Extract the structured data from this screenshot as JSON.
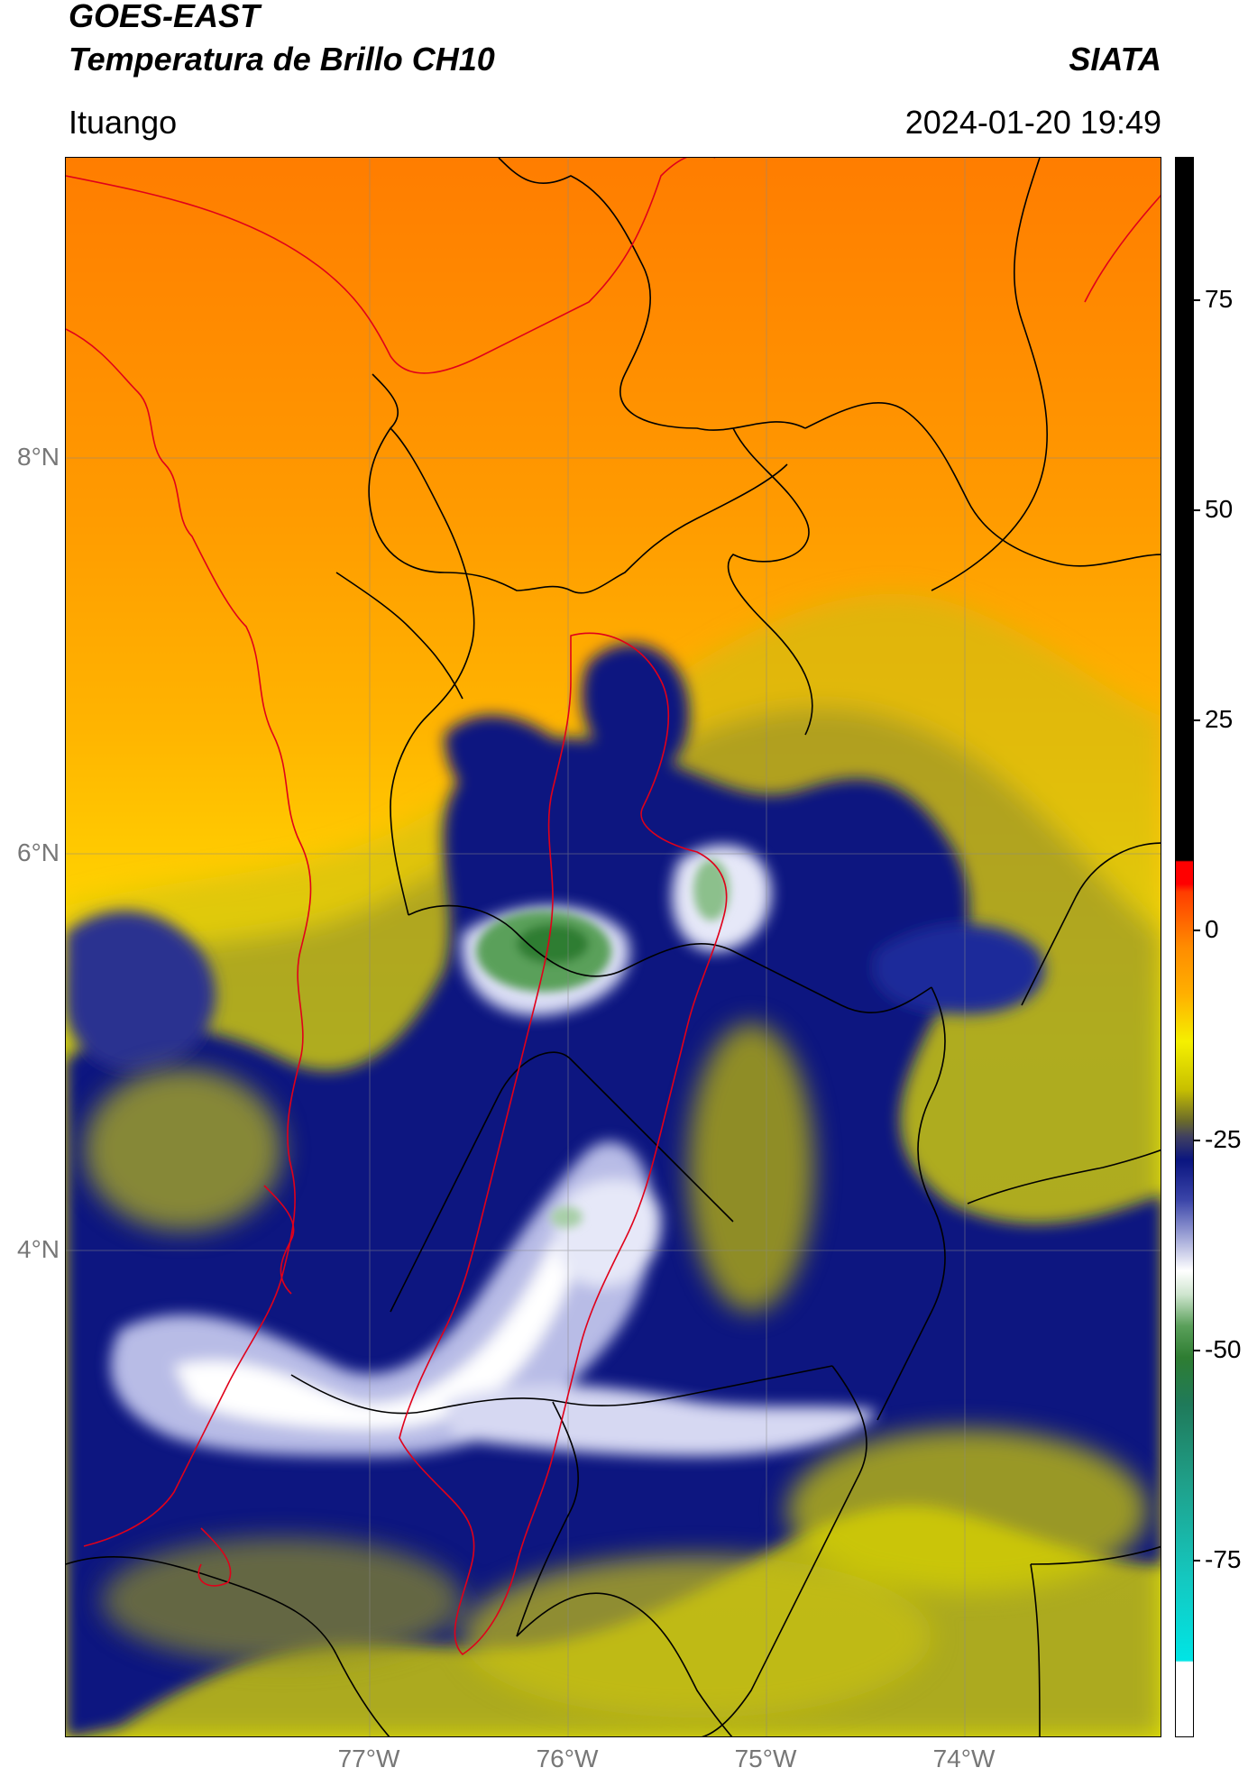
{
  "header": {
    "satellite": "GOES-EAST",
    "product": "Temperatura de Brillo CH10",
    "org": "SIATA",
    "region": "Ituango",
    "datetime": "2024-01-20 19:49"
  },
  "map": {
    "lat_ticks": [
      {
        "label": "8°N",
        "lat": 8
      },
      {
        "label": "6°N",
        "lat": 6
      },
      {
        "label": "4°N",
        "lat": 4
      }
    ],
    "lon_ticks": [
      {
        "label": "77°W",
        "lon": -77
      },
      {
        "label": "76°W",
        "lon": -76
      },
      {
        "label": "75°W",
        "lon": -75
      },
      {
        "label": "74°W",
        "lon": -74
      }
    ],
    "lat_range": [
      2.45,
      9.54
    ],
    "lon_range": [
      -78.53,
      -73.1
    ],
    "grid": true,
    "boundary_colors": {
      "department": "#000000",
      "region": "#e0001a"
    }
  },
  "colorbar": {
    "range": [
      -96,
      92
    ],
    "ticks": [
      {
        "label": "75",
        "value": 75
      },
      {
        "label": "50",
        "value": 50
      },
      {
        "label": "25",
        "value": 25
      },
      {
        "label": "0",
        "value": 0
      },
      {
        "label": "-25",
        "value": -25
      },
      {
        "label": "-50",
        "value": -50
      },
      {
        "label": "-75",
        "value": -75
      }
    ],
    "colors": {
      "black": "#000000",
      "red": "#ff0000",
      "orange": "#ff8c00",
      "yellow": "#f5f000",
      "olive": "#6b6b2a",
      "navy": "#0a1580",
      "white": "#ffffff",
      "green": "#2e7d32",
      "cyan": "#00e5e5"
    }
  }
}
